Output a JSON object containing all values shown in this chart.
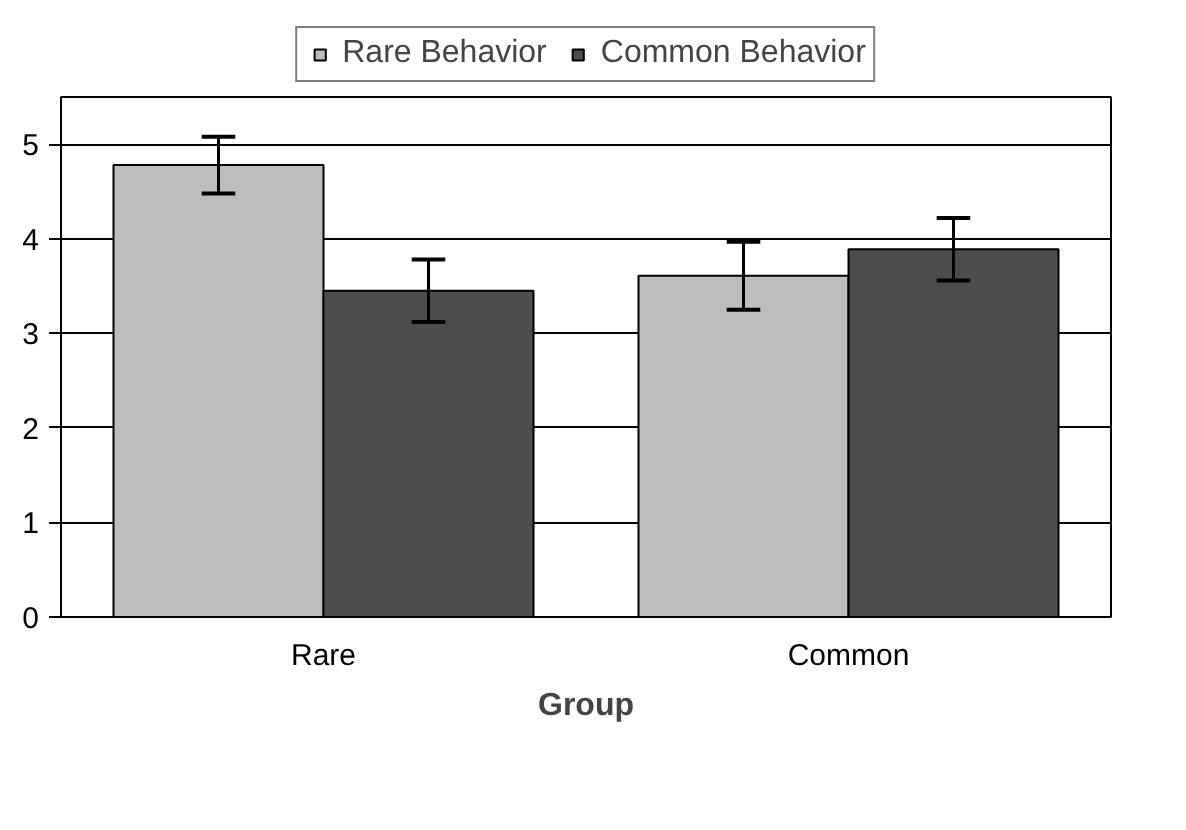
{
  "chart_data": {
    "type": "bar",
    "xlabel": "Group",
    "categories": [
      "Rare",
      "Common"
    ],
    "series": [
      {
        "name": "Rare Behavior",
        "color": "#bdbdbd",
        "values": [
          4.78,
          3.61
        ],
        "errors": [
          0.3,
          0.36
        ]
      },
      {
        "name": "Common Behavior",
        "color": "#4d4d4d",
        "values": [
          3.45,
          3.89
        ],
        "errors": [
          0.33,
          0.33
        ]
      }
    ],
    "ylim": [
      0,
      5.5
    ],
    "yticks": [
      0,
      1,
      2,
      3,
      4,
      5
    ],
    "grid": "y",
    "legend": "top"
  }
}
